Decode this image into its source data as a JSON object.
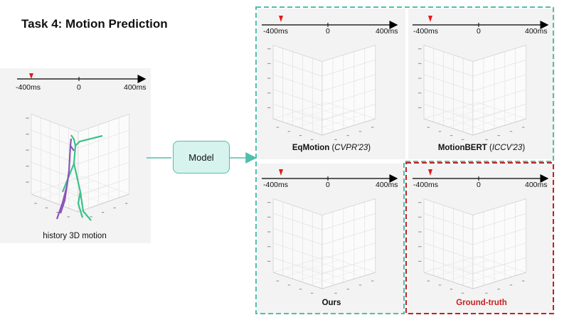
{
  "title": "Task 4: Motion Prediction",
  "timeline": {
    "start": "-400ms",
    "mid": "0",
    "end": "400ms"
  },
  "history_caption": "history 3D motion",
  "model_label": "Model",
  "panels": [
    {
      "name": "EqMotion",
      "venue": "CVPR'23"
    },
    {
      "name": "MotionBERT",
      "venue": "ICCV'23"
    },
    {
      "name": "Ours",
      "venue": ""
    },
    {
      "name": "Ground-truth",
      "venue": ""
    }
  ],
  "colors": {
    "teal": "#4fbfa9",
    "red_marker": "#e01b1b",
    "ground_truth": "#c82020",
    "pose_green": "#3cc18a",
    "pose_purple": "#8a55b8"
  }
}
